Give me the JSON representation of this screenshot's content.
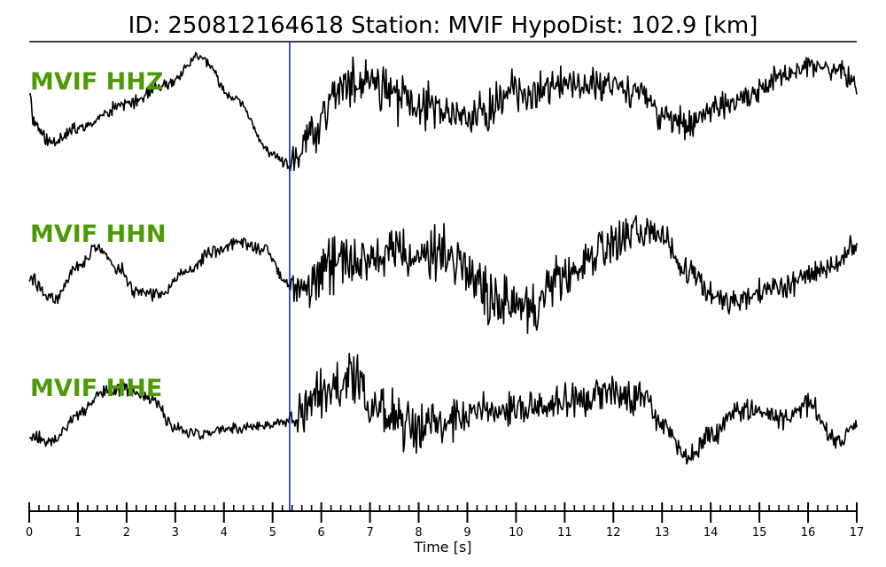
{
  "chart_data": {
    "type": "line",
    "title": "ID: 250812164618   Station: MVIF   HypoDist:   102.9 [km]",
    "xlabel": "Time [s]",
    "xlim": [
      0,
      17
    ],
    "major_ticks": [
      0,
      1,
      2,
      3,
      4,
      5,
      6,
      7,
      8,
      9,
      10,
      11,
      12,
      13,
      14,
      15,
      16,
      17
    ],
    "minor_tick_step": 0.2,
    "grid": false,
    "pick_time": 5.35,
    "pick_color": "#1f1fd6",
    "label_color": "#4e9a06",
    "trace_color": "#000000",
    "series": [
      {
        "name": "MVIF HHZ",
        "noise": 0.1,
        "noise_seed": 11,
        "envelope": [
          [
            0,
            0.08
          ],
          [
            5.3,
            0.06
          ],
          [
            5.5,
            0.28
          ],
          [
            7.5,
            0.33
          ],
          [
            10,
            0.24
          ],
          [
            13,
            0.18
          ],
          [
            17,
            0.14
          ]
        ],
        "points": [
          [
            0,
            0.45
          ],
          [
            0.1,
            -0.05
          ],
          [
            0.4,
            -0.35
          ],
          [
            1.0,
            -0.15
          ],
          [
            2.0,
            0.25
          ],
          [
            2.8,
            0.55
          ],
          [
            3.5,
            1.0
          ],
          [
            4.2,
            0.35
          ],
          [
            5.0,
            -0.55
          ],
          [
            5.35,
            -0.75
          ],
          [
            5.8,
            -0.2
          ],
          [
            6.4,
            0.5
          ],
          [
            7.0,
            0.6
          ],
          [
            8.0,
            0.25
          ],
          [
            9.0,
            0.0
          ],
          [
            10.0,
            0.45
          ],
          [
            11.0,
            0.55
          ],
          [
            12.0,
            0.6
          ],
          [
            12.6,
            0.4
          ],
          [
            13.0,
            0.05
          ],
          [
            13.5,
            -0.05
          ],
          [
            14.5,
            0.25
          ],
          [
            15.5,
            0.7
          ],
          [
            16.0,
            0.85
          ],
          [
            16.6,
            0.8
          ],
          [
            17.0,
            0.6
          ]
        ]
      },
      {
        "name": "MVIF HHN",
        "noise": 0.12,
        "noise_seed": 29,
        "envelope": [
          [
            0,
            0.08
          ],
          [
            5.3,
            0.07
          ],
          [
            5.6,
            0.3
          ],
          [
            9,
            0.32
          ],
          [
            12,
            0.24
          ],
          [
            13,
            0.16
          ],
          [
            17,
            0.14
          ]
        ],
        "points": [
          [
            0,
            0.0
          ],
          [
            0.5,
            -0.3
          ],
          [
            1.0,
            0.2
          ],
          [
            1.4,
            0.45
          ],
          [
            1.8,
            0.2
          ],
          [
            2.2,
            -0.2
          ],
          [
            2.6,
            -0.25
          ],
          [
            3.2,
            0.1
          ],
          [
            3.8,
            0.4
          ],
          [
            4.3,
            0.55
          ],
          [
            4.8,
            0.45
          ],
          [
            5.35,
            -0.1
          ],
          [
            5.6,
            -0.15
          ],
          [
            6.2,
            0.2
          ],
          [
            7.5,
            0.35
          ],
          [
            8.5,
            0.45
          ],
          [
            9.0,
            0.15
          ],
          [
            9.5,
            -0.25
          ],
          [
            10.2,
            -0.45
          ],
          [
            11.0,
            0.05
          ],
          [
            11.8,
            0.45
          ],
          [
            12.5,
            0.75
          ],
          [
            13.0,
            0.65
          ],
          [
            13.5,
            0.1
          ],
          [
            14.0,
            -0.25
          ],
          [
            14.5,
            -0.3
          ],
          [
            15.5,
            -0.1
          ],
          [
            16.5,
            0.2
          ],
          [
            17.0,
            0.5
          ]
        ]
      },
      {
        "name": "MVIF HHE",
        "noise": 0.1,
        "noise_seed": 53,
        "envelope": [
          [
            0,
            0.08
          ],
          [
            5.3,
            0.07
          ],
          [
            5.6,
            0.3
          ],
          [
            7.2,
            0.4
          ],
          [
            8.5,
            0.25
          ],
          [
            12,
            0.22
          ],
          [
            13,
            0.16
          ],
          [
            17,
            0.13
          ]
        ],
        "points": [
          [
            0,
            -0.25
          ],
          [
            0.5,
            -0.3
          ],
          [
            1.0,
            0.1
          ],
          [
            1.5,
            0.45
          ],
          [
            2.0,
            0.5
          ],
          [
            2.5,
            0.35
          ],
          [
            3.0,
            -0.1
          ],
          [
            3.5,
            -0.2
          ],
          [
            4.5,
            -0.1
          ],
          [
            5.35,
            0.0
          ],
          [
            6.0,
            0.45
          ],
          [
            6.6,
            0.7
          ],
          [
            7.2,
            0.2
          ],
          [
            7.8,
            -0.1
          ],
          [
            8.5,
            0.0
          ],
          [
            9.5,
            0.2
          ],
          [
            10.5,
            0.25
          ],
          [
            11.5,
            0.35
          ],
          [
            12.0,
            0.45
          ],
          [
            12.6,
            0.35
          ],
          [
            13.0,
            -0.05
          ],
          [
            13.5,
            -0.55
          ],
          [
            14.0,
            -0.3
          ],
          [
            14.5,
            0.15
          ],
          [
            15.0,
            0.15
          ],
          [
            15.5,
            0.05
          ],
          [
            16.0,
            0.25
          ],
          [
            16.6,
            -0.3
          ],
          [
            17.0,
            -0.1
          ]
        ]
      }
    ]
  }
}
